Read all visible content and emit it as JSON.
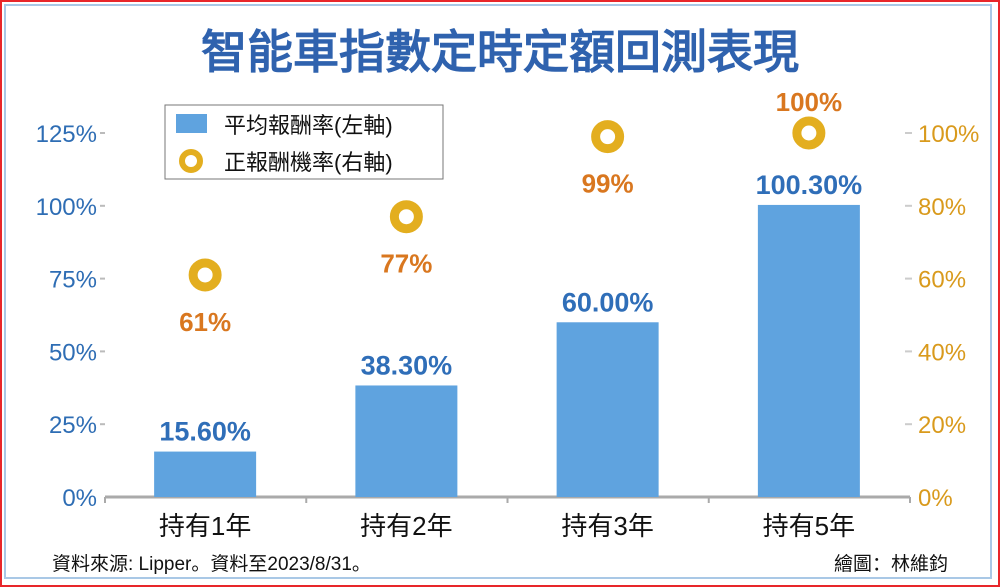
{
  "chart_data": {
    "type": "bar",
    "title": "智能車指數定時定額回測表現",
    "categories": [
      "持有1年",
      "持有2年",
      "持有3年",
      "持有5年"
    ],
    "series": [
      {
        "name": "平均報酬率(左軸)",
        "axis": "left",
        "type": "bar",
        "values": [
          15.6,
          38.3,
          60.0,
          100.3
        ],
        "labels": [
          "15.60%",
          "38.30%",
          "60.00%",
          "100.30%"
        ],
        "color": "#5fa3df"
      },
      {
        "name": "正報酬機率(右軸)",
        "axis": "right",
        "type": "scatter",
        "values": [
          61,
          77,
          99,
          100
        ],
        "labels": [
          "61%",
          "77%",
          "99%",
          "100%"
        ],
        "color": "#e3ae1f"
      }
    ],
    "left_axis": {
      "ylim": [
        0,
        125
      ],
      "ticks": [
        "0%",
        "25%",
        "50%",
        "75%",
        "100%",
        "125%"
      ],
      "color": "#2e6db4"
    },
    "right_axis": {
      "ylim": [
        0,
        100
      ],
      "ticks": [
        "0%",
        "20%",
        "40%",
        "60%",
        "80%",
        "100%"
      ],
      "color": "#d99a1c"
    },
    "legend": "top-left",
    "grid": false
  },
  "source": "資料來源: Lipper。資料至2023/8/31。",
  "credit": "繪圖：林維鈞"
}
